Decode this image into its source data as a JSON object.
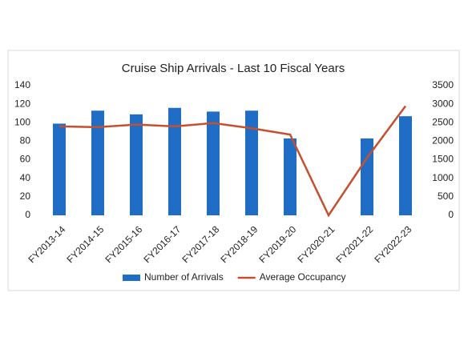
{
  "chart_data": {
    "type": "bar-line",
    "title": "Cruise Ship Arrivals - Last 10 Fiscal Years",
    "categories": [
      "FY2013-14",
      "FY2014-15",
      "FY2015-16",
      "FY2016-17",
      "FY2017-18",
      "FY2018-19",
      "FY2019-20",
      "FY2020-21",
      "FY2021-22",
      "FY2022-23"
    ],
    "series": [
      {
        "name": "Number of Arrivals",
        "type": "bar",
        "color": "#1f6dc4",
        "values": [
          99,
          113,
          109,
          116,
          112,
          113,
          83,
          0,
          83,
          107
        ]
      },
      {
        "name": "Average Occupancy",
        "type": "line",
        "axis": "y2",
        "color": "#c4502f",
        "values": [
          2400,
          2380,
          2450,
          2400,
          2490,
          2350,
          2180,
          0,
          1550,
          2950
        ]
      }
    ],
    "ylim": [
      0,
      140
    ],
    "yticks": [
      0,
      20,
      40,
      60,
      80,
      100,
      120,
      140
    ],
    "y2lim": [
      0,
      3500
    ],
    "y2ticks": [
      0,
      500,
      1000,
      1500,
      2000,
      2500,
      3000,
      3500
    ],
    "grid": false,
    "legend": "bottom"
  }
}
